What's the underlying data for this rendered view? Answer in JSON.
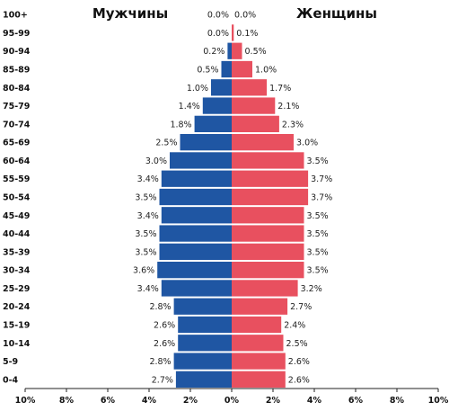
{
  "chart_data": {
    "type": "bar",
    "orientation": "horizontal-population-pyramid",
    "categories": [
      "100+",
      "95-99",
      "90-94",
      "85-89",
      "80-84",
      "75-79",
      "70-74",
      "65-69",
      "60-64",
      "55-59",
      "50-54",
      "45-49",
      "40-44",
      "35-39",
      "30-34",
      "25-29",
      "20-24",
      "15-19",
      "10-14",
      "5-9",
      "0-4"
    ],
    "series": [
      {
        "name": "Мужчины",
        "color": "#1f56a3",
        "values": [
          0.0,
          0.0,
          0.2,
          0.5,
          1.0,
          1.4,
          1.8,
          2.5,
          3.0,
          3.4,
          3.5,
          3.4,
          3.5,
          3.5,
          3.6,
          3.4,
          2.8,
          2.6,
          2.6,
          2.8,
          2.7
        ]
      },
      {
        "name": "Женщины",
        "color": "#e8505f",
        "values": [
          0.0,
          0.1,
          0.5,
          1.0,
          1.7,
          2.1,
          2.3,
          3.0,
          3.5,
          3.7,
          3.7,
          3.5,
          3.5,
          3.5,
          3.5,
          3.2,
          2.7,
          2.4,
          2.5,
          2.6,
          2.6
        ]
      }
    ],
    "xticks": [
      "10%",
      "8%",
      "6%",
      "4%",
      "2%",
      "0%",
      "2%",
      "4%",
      "6%",
      "8%",
      "10%"
    ],
    "xlim": [
      -10,
      10
    ],
    "value_suffix": "%",
    "grid": false,
    "legend": "series names as titles above each side"
  }
}
